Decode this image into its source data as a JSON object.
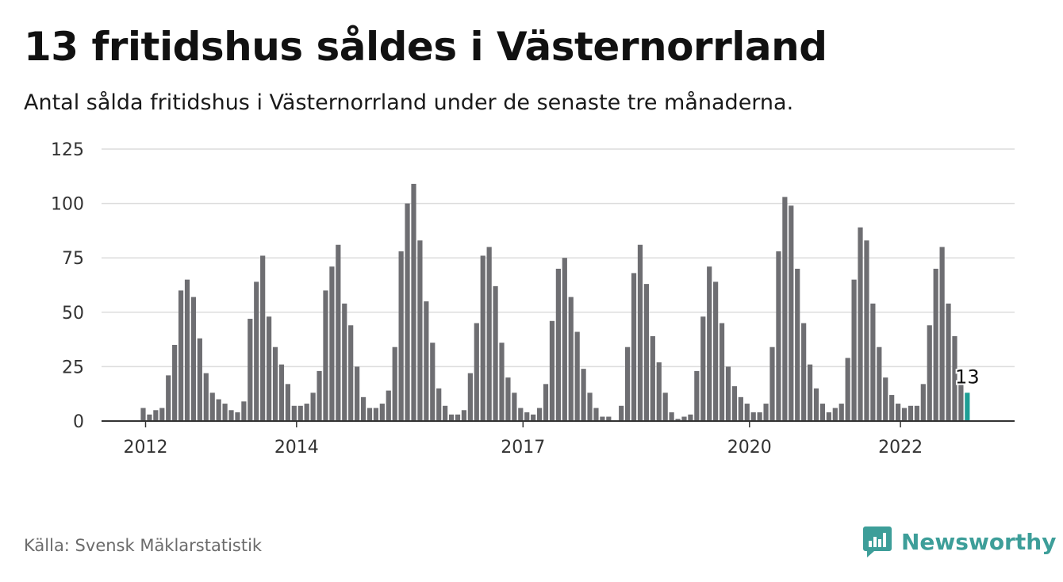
{
  "chart_data": {
    "type": "bar",
    "title": "13 fritidshus såldes i Västernorrland",
    "subtitle": "Antal sålda fritidshus i Västernorrland under de senaste tre månaderna.",
    "xlabel": "",
    "ylabel": "",
    "ylim": [
      0,
      125
    ],
    "yticks": [
      "0",
      "25",
      "50",
      "75",
      "100",
      "125"
    ],
    "xticks": [
      {
        "label": "2012",
        "index": 0
      },
      {
        "label": "2014",
        "index": 24
      },
      {
        "label": "2017",
        "index": 60
      },
      {
        "label": "2020",
        "index": 96
      },
      {
        "label": "2022",
        "index": 120
      }
    ],
    "grid": true,
    "legend": "none",
    "start_month": "2012-01",
    "values": [
      6,
      3,
      5,
      6,
      21,
      35,
      60,
      65,
      57,
      38,
      22,
      13,
      10,
      8,
      5,
      4,
      9,
      47,
      64,
      76,
      48,
      34,
      26,
      17,
      7,
      7,
      8,
      13,
      23,
      60,
      71,
      81,
      54,
      44,
      25,
      11,
      6,
      6,
      8,
      14,
      34,
      78,
      100,
      109,
      83,
      55,
      36,
      15,
      7,
      3,
      3,
      5,
      22,
      45,
      76,
      80,
      62,
      36,
      20,
      13,
      6,
      4,
      3,
      6,
      17,
      46,
      70,
      75,
      57,
      41,
      24,
      13,
      6,
      2,
      2,
      0,
      7,
      34,
      68,
      81,
      63,
      39,
      27,
      13,
      4,
      1,
      2,
      3,
      23,
      48,
      71,
      64,
      45,
      25,
      16,
      11,
      8,
      4,
      4,
      8,
      34,
      78,
      103,
      99,
      70,
      45,
      26,
      15,
      8,
      4,
      6,
      8,
      29,
      65,
      89,
      83,
      54,
      34,
      20,
      12,
      8,
      6,
      7,
      7,
      17,
      44,
      70,
      80,
      54,
      39,
      17,
      13
    ],
    "highlight": {
      "index": 131,
      "label": "13"
    },
    "colors": {
      "bar": "#6e6e72",
      "highlight": "#1e9e95",
      "grid": "#dcdcdc",
      "axis": "#333333",
      "tick_text": "#333333"
    }
  },
  "footer": {
    "source": "Källa: Svensk Mäklarstatistik",
    "brand": "Newsworthy",
    "brand_color": "#3d9e99",
    "logo_icon": "newsworthy-logo-icon"
  }
}
